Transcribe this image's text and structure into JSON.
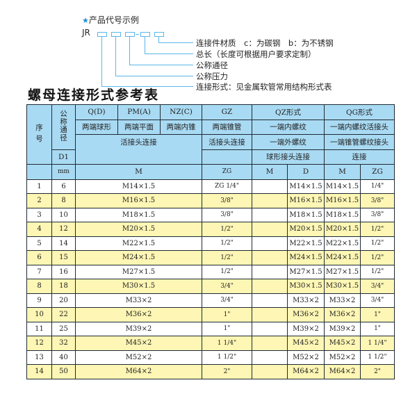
{
  "example": {
    "title": "产品代号示例",
    "star_icon": "star-icon",
    "prefix": "JR",
    "labels": [
      "连接件材质　c：为碳钢　b：为不锈钢",
      "总长（长度可根据用户要求定制）",
      "公称通径",
      "公称压力",
      "连接形式：见金属软管常用结构形式表"
    ]
  },
  "table_title": "螺母连接形式参考表",
  "header": {
    "seq": "序 号",
    "dn": "公称通径",
    "d1": "D1",
    "mm": "mm",
    "q": "Q(D)",
    "pm": "PM(A)",
    "nz": "NZ(C)",
    "gz": "GZ",
    "qz": "QZ形式",
    "qg": "QG形式",
    "q2": "两端球形",
    "pm2": "两端平面",
    "nz2": "两端内锥",
    "gz2": "两端锥管",
    "qz2": "一端内螺纹",
    "qg2": "一端内螺纹活接头",
    "union": "活接头连接",
    "gz3": "活接头连接",
    "qz3": "一端外螺纹",
    "qg3": "一端锥管螺纹接头",
    "qz4": "球形接头连接",
    "qg4": "连接",
    "m": "M",
    "zg": "ZG",
    "qz_m": "M",
    "qz_d": "D",
    "qg_m": "M",
    "qg_zg": "ZG"
  },
  "rows": [
    {
      "no": "1",
      "d1": "6",
      "m": "M14×1.5",
      "zg": "ZG 1/4\"",
      "qz_m": "",
      "qz_d": "M14×1.5",
      "qg_m": "M14×1.5",
      "qg_zg": "1/4\""
    },
    {
      "no": "2",
      "d1": "8",
      "m": "M16×1.5",
      "zg": "3/8\"",
      "qz_m": "",
      "qz_d": "M16×1.5",
      "qg_m": "M16×1.5",
      "qg_zg": "3/8\""
    },
    {
      "no": "3",
      "d1": "10",
      "m": "M18×1.5",
      "zg": "3/8\"",
      "qz_m": "",
      "qz_d": "M18×1.5",
      "qg_m": "M18×1.5",
      "qg_zg": "3/8\""
    },
    {
      "no": "4",
      "d1": "12",
      "m": "M20×1.5",
      "zg": "1/2\"",
      "qz_m": "",
      "qz_d": "M20×1.5",
      "qg_m": "M20×1.5",
      "qg_zg": "1/2\""
    },
    {
      "no": "5",
      "d1": "14",
      "m": "M22×1.5",
      "zg": "1/2\"",
      "qz_m": "",
      "qz_d": "M22×1.5",
      "qg_m": "M22×1.5",
      "qg_zg": "1/2\""
    },
    {
      "no": "6",
      "d1": "15",
      "m": "M24×1.5",
      "zg": "1/2\"",
      "qz_m": "",
      "qz_d": "M24×1.5",
      "qg_m": "M24×1.5",
      "qg_zg": "1/2\""
    },
    {
      "no": "7",
      "d1": "16",
      "m": "M27×1.5",
      "zg": "1/2\"",
      "qz_m": "",
      "qz_d": "M27×1.5",
      "qg_m": "M27×1.5",
      "qg_zg": "1/2\""
    },
    {
      "no": "8",
      "d1": "18",
      "m": "M30×1.5",
      "zg": "3/4\"",
      "qz_m": "",
      "qz_d": "M30×1.5",
      "qg_m": "M30×1.5",
      "qg_zg": "3/4\""
    },
    {
      "no": "9",
      "d1": "20",
      "m": "M33×2",
      "zg": "3/4\"",
      "qz_m": "",
      "qz_d": "M33×2",
      "qg_m": "M33×2",
      "qg_zg": "3/4\""
    },
    {
      "no": "10",
      "d1": "22",
      "m": "M36×2",
      "zg": "1\"",
      "qz_m": "",
      "qz_d": "M36×2",
      "qg_m": "M36×2",
      "qg_zg": "1\""
    },
    {
      "no": "11",
      "d1": "25",
      "m": "M39×2",
      "zg": "1\"",
      "qz_m": "",
      "qz_d": "M39×2",
      "qg_m": "M39×2",
      "qg_zg": "1\""
    },
    {
      "no": "12",
      "d1": "32",
      "m": "M45×2",
      "zg": "1 1/4\"",
      "qz_m": "",
      "qz_d": "M45×2",
      "qg_m": "M45×2",
      "qg_zg": "1 1/4\""
    },
    {
      "no": "13",
      "d1": "40",
      "m": "M52×2",
      "zg": "1 1/2\"",
      "qz_m": "",
      "qz_d": "M52×2",
      "qg_m": "M52×2",
      "qg_zg": "1 1/2\""
    },
    {
      "no": "14",
      "d1": "50",
      "m": "M64×2",
      "zg": "2\"",
      "qz_m": "",
      "qz_d": "M64×2",
      "qg_m": "M64×2",
      "qg_zg": "2\""
    }
  ],
  "colors": {
    "header_bg": "#a9daf3",
    "even_row_bg": "#fdf6b4",
    "accent": "#59b7e8"
  }
}
